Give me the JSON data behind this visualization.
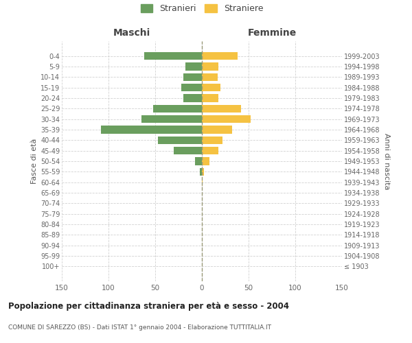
{
  "age_groups": [
    "100+",
    "95-99",
    "90-94",
    "85-89",
    "80-84",
    "75-79",
    "70-74",
    "65-69",
    "60-64",
    "55-59",
    "50-54",
    "45-49",
    "40-44",
    "35-39",
    "30-34",
    "25-29",
    "20-24",
    "15-19",
    "10-14",
    "5-9",
    "0-4"
  ],
  "birth_years": [
    "≤ 1903",
    "1904-1908",
    "1909-1913",
    "1914-1918",
    "1919-1923",
    "1924-1928",
    "1929-1933",
    "1934-1938",
    "1939-1943",
    "1944-1948",
    "1949-1953",
    "1954-1958",
    "1959-1963",
    "1964-1968",
    "1969-1973",
    "1974-1978",
    "1979-1983",
    "1984-1988",
    "1989-1993",
    "1994-1998",
    "1999-2003"
  ],
  "maschi": [
    0,
    0,
    0,
    0,
    0,
    0,
    0,
    0,
    0,
    2,
    7,
    30,
    47,
    108,
    65,
    52,
    20,
    22,
    20,
    18,
    62
  ],
  "femmine": [
    0,
    0,
    0,
    0,
    0,
    0,
    0,
    0,
    1,
    2,
    8,
    18,
    22,
    32,
    52,
    42,
    18,
    20,
    17,
    18,
    38
  ],
  "maschi_color": "#6a9e5e",
  "femmine_color": "#f5c242",
  "background_color": "#ffffff",
  "grid_color": "#cccccc",
  "title": "Popolazione per cittadinanza straniera per età e sesso - 2004",
  "subtitle": "COMUNE DI SAREZZO (BS) - Dati ISTAT 1° gennaio 2004 - Elaborazione TUTTITALIA.IT",
  "ylabel_left": "Fasce di età",
  "ylabel_right": "Anni di nascita",
  "legend_maschi": "Stranieri",
  "legend_femmine": "Straniere",
  "xlim": 150,
  "header_maschi": "Maschi",
  "header_femmine": "Femmine"
}
